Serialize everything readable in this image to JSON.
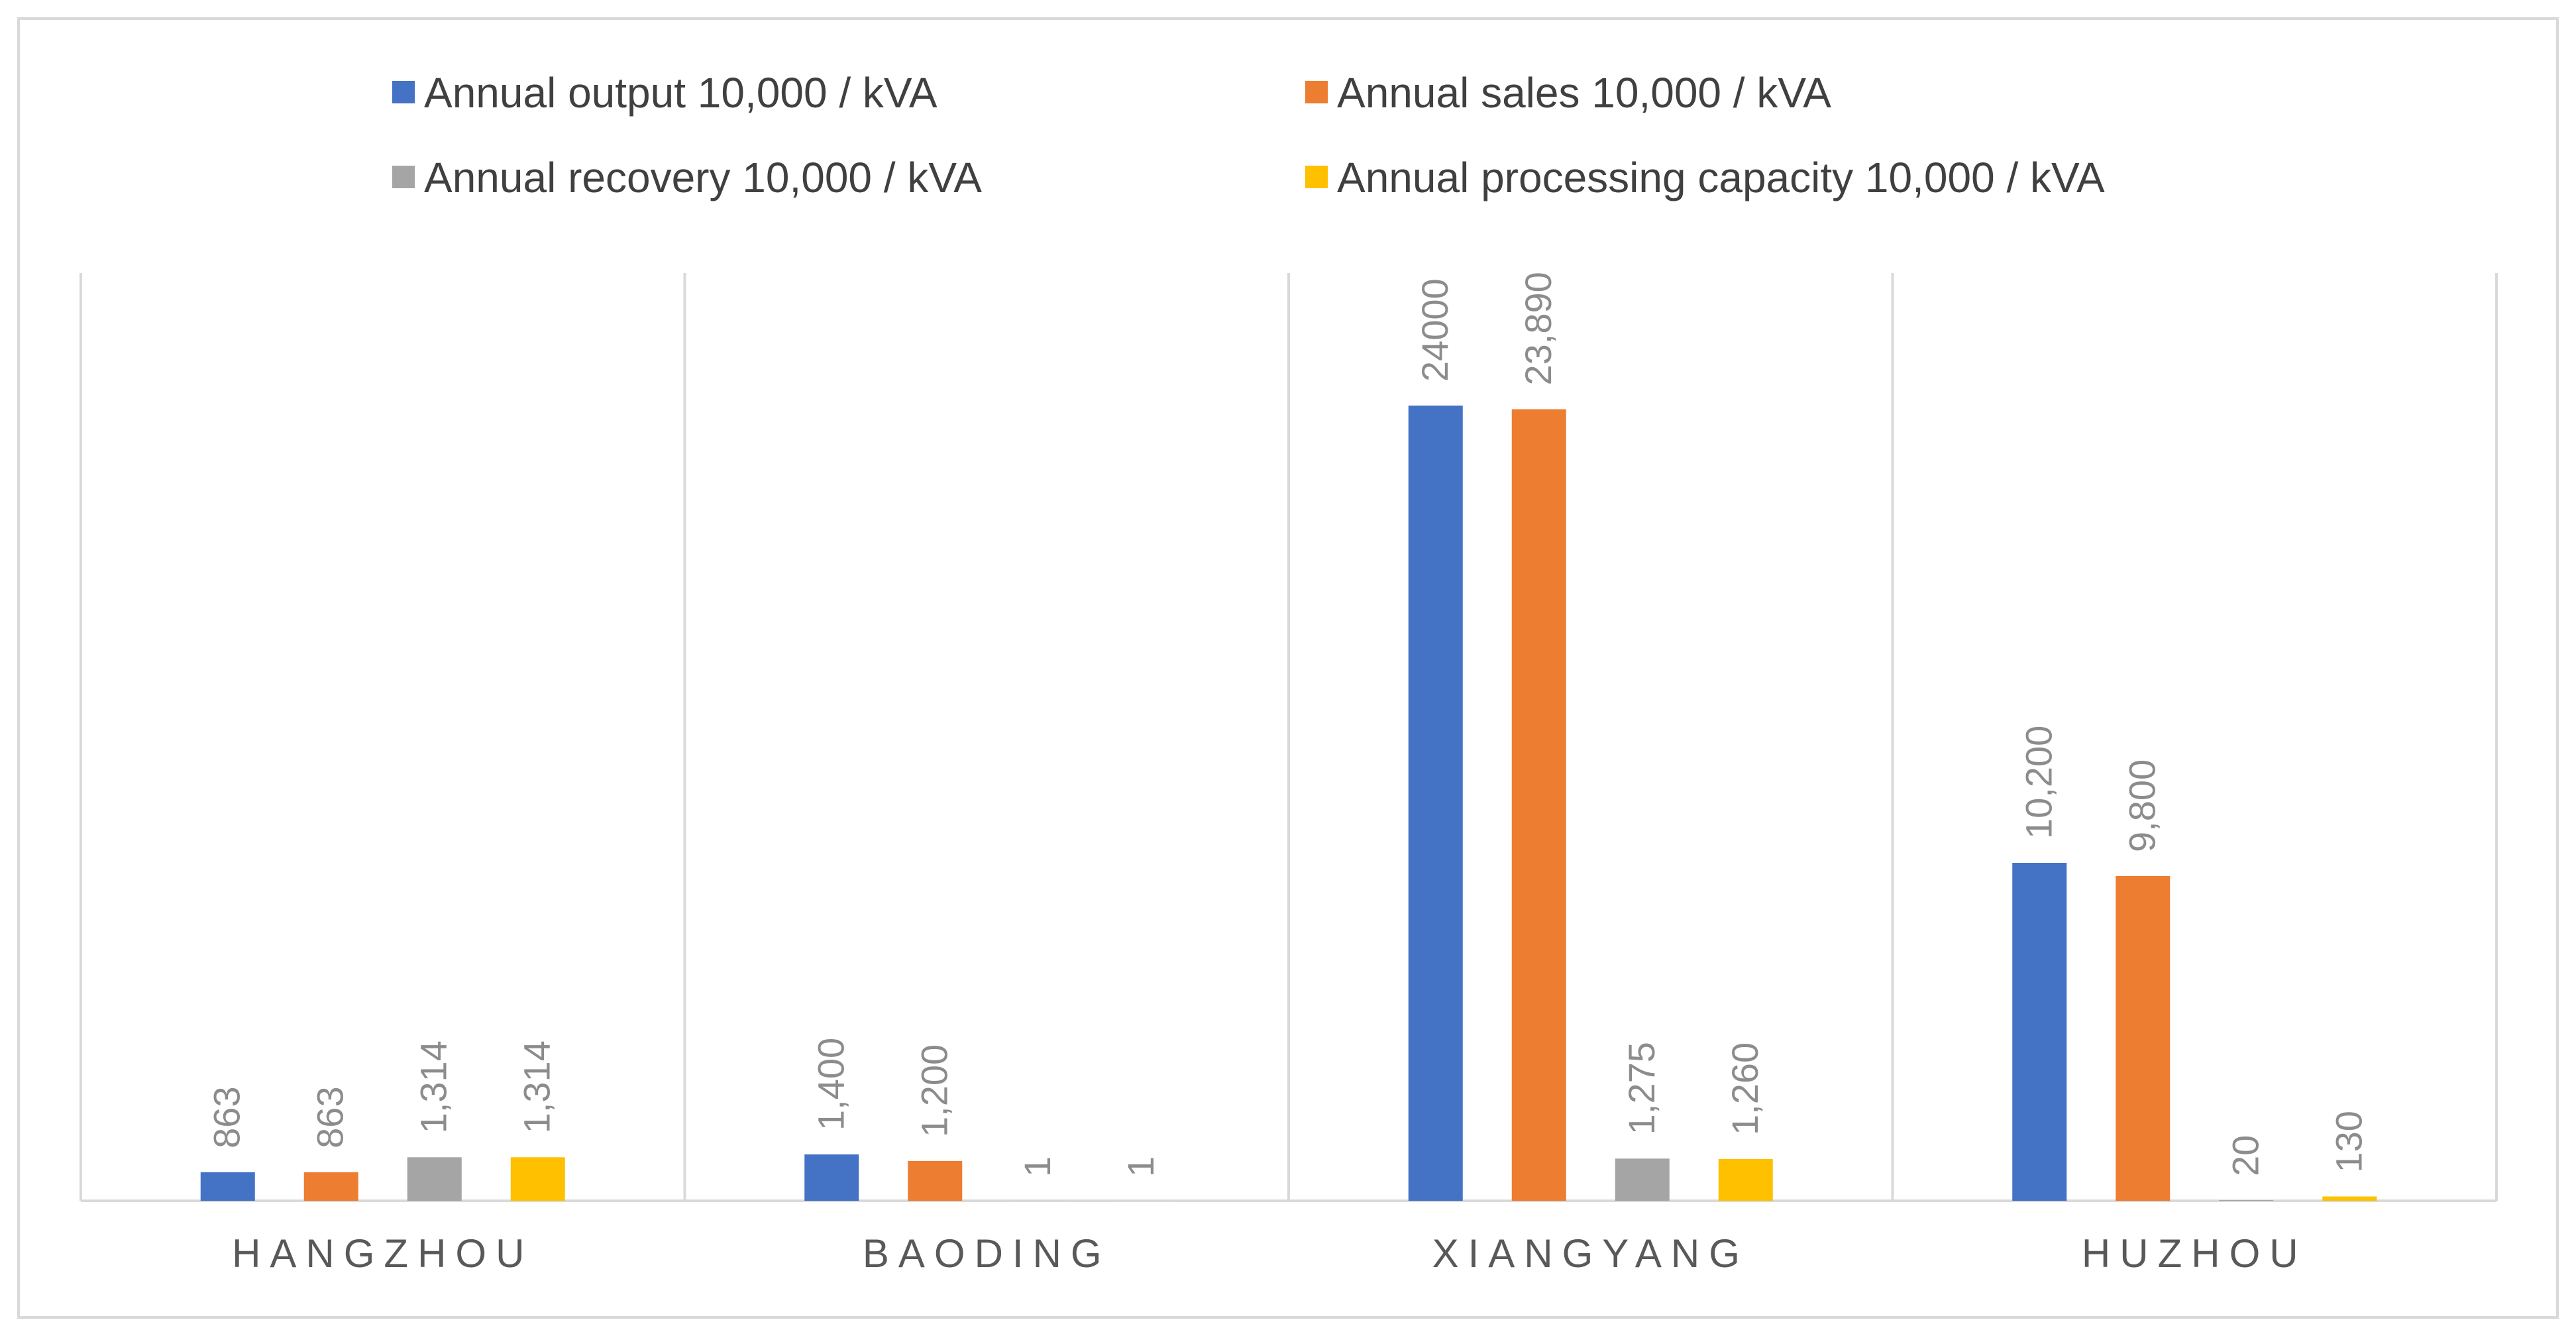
{
  "chart_data": {
    "type": "bar",
    "title": "",
    "xlabel": "",
    "ylabel": "",
    "grid": false,
    "legend_position": "top",
    "ylim": [
      0,
      28000
    ],
    "categories": [
      "HANGZHOU",
      "BAODING",
      "XIANGYANG",
      "HUZHOU"
    ],
    "series": [
      {
        "name": "Annual output  10,000 / kVA",
        "color": "#4472C4",
        "values": [
          863,
          1400,
          24000,
          10200
        ],
        "labels": [
          "863",
          "1,400",
          "24000",
          "10,200"
        ]
      },
      {
        "name": "Annual sales  10,000 / kVA",
        "color": "#ED7D31",
        "values": [
          863,
          1200,
          23890,
          9800
        ],
        "labels": [
          "863",
          "1,200",
          "23,890",
          "9,800"
        ]
      },
      {
        "name": "Annual recovery  10,000 / kVA",
        "color": "#A5A5A5",
        "values": [
          1314,
          1,
          1275,
          20
        ],
        "labels": [
          "1,314",
          "1",
          "1,275",
          "20"
        ]
      },
      {
        "name": "Annual processing capacity 10,000 / kVA",
        "color": "#FFC000",
        "values": [
          1314,
          1,
          1260,
          130
        ],
        "labels": [
          "1,314",
          "1",
          "1,260",
          "130"
        ]
      }
    ]
  }
}
